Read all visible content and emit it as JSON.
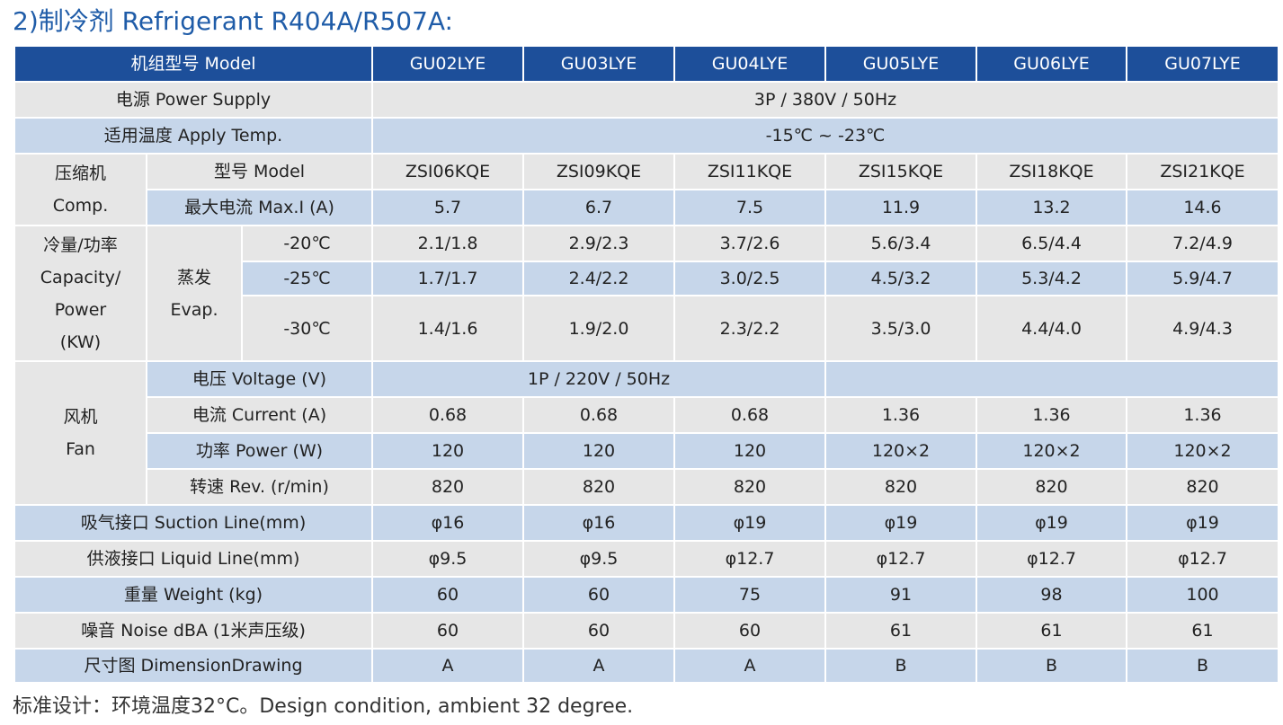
{
  "title": "2)制冷剂 Refrigerant R404A/R507A:",
  "table": {
    "header": [
      "机组型号 Model",
      "GU02LYE",
      "GU03LYE",
      "GU04LYE",
      "GU05LYE",
      "GU06LYE",
      "GU07LYE"
    ],
    "power_supply": [
      "电源 Power Supply",
      "3P / 380V / 50Hz"
    ],
    "apply_temp": [
      "适用温度 Apply Temp.",
      "-15℃ ~ -23℃"
    ],
    "compressor": {
      "group": [
        "压缩机",
        "Comp."
      ],
      "model": [
        "型号 Model",
        "ZSI06KQE",
        "ZSI09KQE",
        "ZSI11KQE",
        "ZSI15KQE",
        "ZSI18KQE",
        "ZSI21KQE"
      ],
      "max_current": [
        "最大电流 Max.I (A)",
        5.7,
        6.7,
        7.5,
        11.9,
        13.2,
        14.6
      ]
    },
    "capacity": {
      "group": [
        "冷量/功率",
        "Capacity/",
        "Power",
        "(KW)"
      ],
      "evap": [
        "蒸发",
        "Evap."
      ],
      "rows": [
        [
          "-20℃",
          "2.1/1.8",
          "2.9/2.3",
          "3.7/2.6",
          "5.6/3.4",
          "6.5/4.4",
          "7.2/4.9"
        ],
        [
          "-25℃",
          "1.7/1.7",
          "2.4/2.2",
          "3.0/2.5",
          "4.5/3.2",
          "5.3/4.2",
          "5.9/4.7"
        ],
        [
          "-30℃",
          "1.4/1.6",
          "1.9/2.0",
          "2.3/2.2",
          "3.5/3.0",
          "4.4/4.0",
          "4.9/4.3"
        ]
      ]
    },
    "fan": {
      "group": [
        "风机",
        "Fan"
      ],
      "voltage": [
        "电压 Voltage (V)",
        "1P / 220V / 50Hz"
      ],
      "current": [
        "电流 Current (A)",
        0.68,
        0.68,
        0.68,
        1.36,
        1.36,
        1.36
      ],
      "power": [
        "功率 Power (W)",
        120,
        120,
        120,
        "120×2",
        "120×2",
        "120×2"
      ],
      "speed": [
        "转速 Rev. (r/min)",
        820,
        820,
        820,
        820,
        820,
        820
      ]
    },
    "suction": [
      "吸气接口 Suction Line(mm)",
      "φ16",
      "φ16",
      "φ19",
      "φ19",
      "φ19",
      "φ19"
    ],
    "liquid": [
      "供液接口 Liquid Line(mm)",
      "φ9.5",
      "φ9.5",
      "φ12.7",
      "φ12.7",
      "φ12.7",
      "φ12.7"
    ],
    "weight": [
      "重量 Weight (kg)",
      60,
      60,
      75,
      91,
      98,
      100
    ],
    "noise": [
      "噪音 Noise dBA (1米声压级)",
      60,
      60,
      60,
      61,
      61,
      61
    ],
    "dimension": [
      "尺寸图 DimensionDrawing",
      "A",
      "A",
      "A",
      "B",
      "B",
      "B"
    ]
  },
  "note": "标准设计：环境温度32°C。Design condition, ambient 32 degree."
}
